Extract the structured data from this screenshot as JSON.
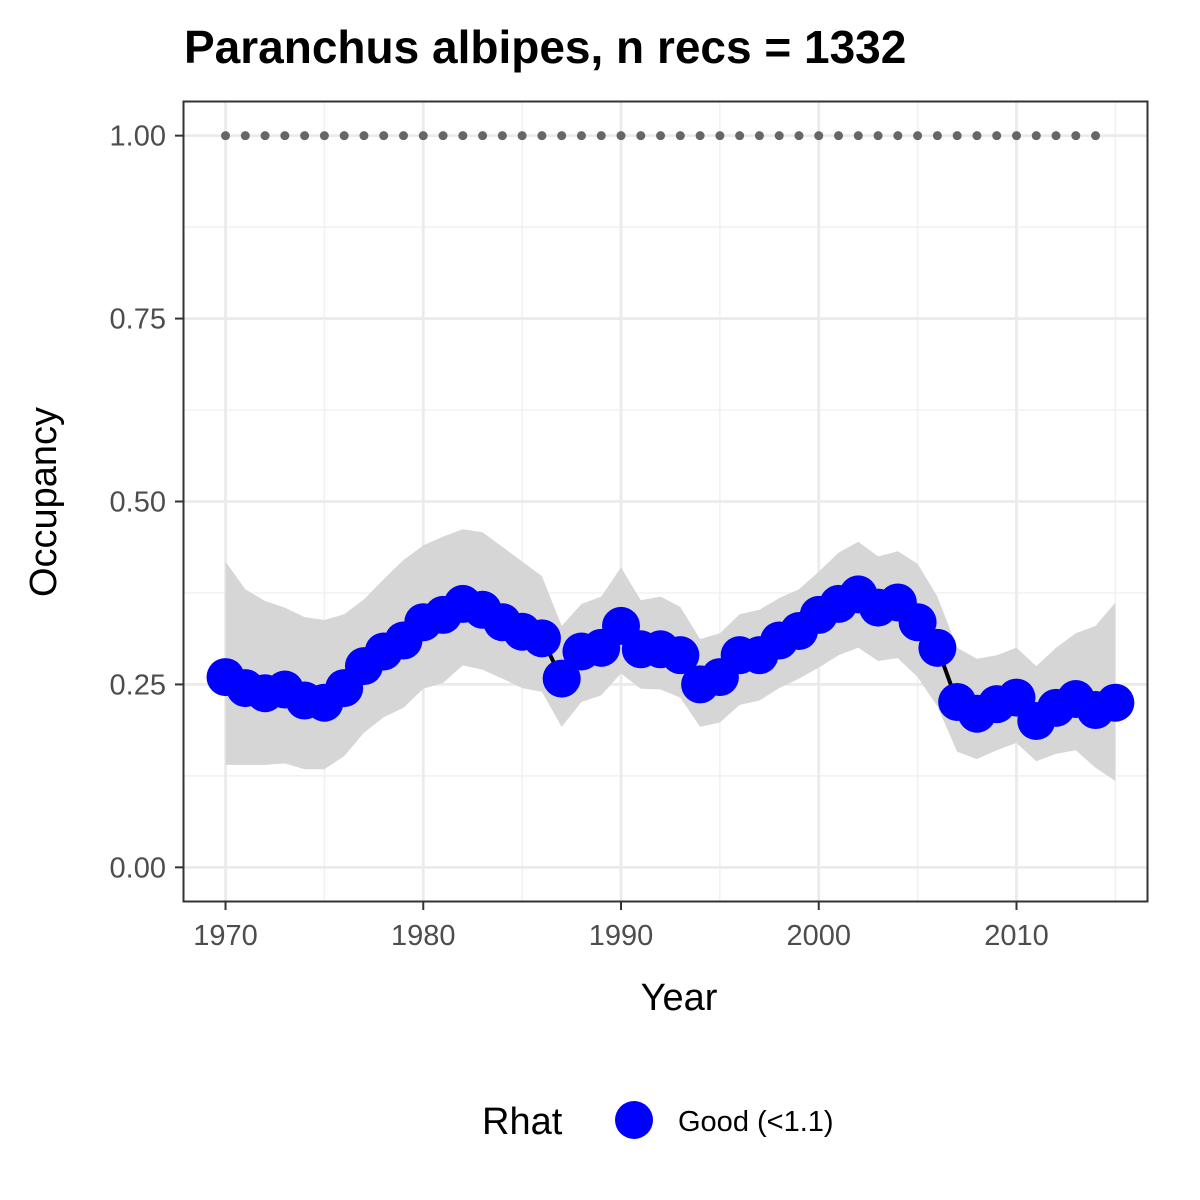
{
  "chart_data": {
    "type": "line",
    "title": "Paranchus albipes, n recs = 1332",
    "xlabel": "Year",
    "ylabel": "Occupancy",
    "xlim": [
      1967.9,
      1916.6
    ],
    "ylim": [
      -0.046,
      1.046
    ],
    "x_ticks": [
      1970,
      1980,
      1990,
      2000,
      2010
    ],
    "x_tick_labels": [
      "1970",
      "1980",
      "1990",
      "2000",
      "2010"
    ],
    "y_ticks": [
      0,
      0.25,
      0.5,
      0.75,
      1.0
    ],
    "y_tick_labels": [
      "0.00",
      "0.25",
      "0.50",
      "0.75",
      "1.00"
    ],
    "grid": true,
    "series": [
      {
        "name": "Occupancy",
        "x": [
          1970,
          1971,
          1972,
          1973,
          1974,
          1975,
          1976,
          1977,
          1978,
          1979,
          1980,
          1981,
          1982,
          1983,
          1984,
          1985,
          1986,
          1987,
          1988,
          1989,
          1990,
          1991,
          1992,
          1993,
          1994,
          1995,
          1996,
          1997,
          1998,
          1999,
          2000,
          2001,
          2002,
          2003,
          2004,
          2005,
          2006,
          2007,
          2008,
          2009,
          2010,
          2011,
          2012,
          2013,
          2014,
          2015
        ],
        "values": [
          0.26,
          0.245,
          0.238,
          0.243,
          0.228,
          0.225,
          0.245,
          0.275,
          0.295,
          0.31,
          0.335,
          0.345,
          0.36,
          0.352,
          0.335,
          0.322,
          0.313,
          0.258,
          0.295,
          0.3,
          0.33,
          0.298,
          0.298,
          0.29,
          0.25,
          0.26,
          0.29,
          0.29,
          0.31,
          0.323,
          0.345,
          0.36,
          0.373,
          0.355,
          0.362,
          0.335,
          0.3,
          0.226,
          0.21,
          0.223,
          0.232,
          0.2,
          0.218,
          0.23,
          0.215,
          0.225
        ],
        "lower": [
          0.14,
          0.14,
          0.14,
          0.142,
          0.134,
          0.134,
          0.152,
          0.184,
          0.205,
          0.218,
          0.244,
          0.252,
          0.276,
          0.27,
          0.258,
          0.245,
          0.24,
          0.192,
          0.226,
          0.235,
          0.265,
          0.244,
          0.243,
          0.232,
          0.192,
          0.198,
          0.222,
          0.228,
          0.245,
          0.258,
          0.273,
          0.29,
          0.3,
          0.282,
          0.286,
          0.26,
          0.22,
          0.158,
          0.148,
          0.16,
          0.17,
          0.145,
          0.155,
          0.16,
          0.136,
          0.118
        ],
        "upper": [
          0.418,
          0.38,
          0.364,
          0.355,
          0.342,
          0.338,
          0.346,
          0.366,
          0.394,
          0.42,
          0.44,
          0.452,
          0.462,
          0.458,
          0.438,
          0.418,
          0.398,
          0.33,
          0.36,
          0.37,
          0.41,
          0.365,
          0.37,
          0.356,
          0.312,
          0.32,
          0.346,
          0.352,
          0.368,
          0.38,
          0.404,
          0.43,
          0.445,
          0.425,
          0.432,
          0.415,
          0.37,
          0.3,
          0.285,
          0.29,
          0.3,
          0.275,
          0.3,
          0.32,
          0.33,
          0.362
        ],
        "color": "#0000ff",
        "line_color": "#000000",
        "ribbon_color": "#d6d6d6"
      },
      {
        "name": "Reference",
        "x": [
          1970,
          1971,
          1972,
          1973,
          1974,
          1975,
          1976,
          1977,
          1978,
          1979,
          1980,
          1981,
          1982,
          1983,
          1984,
          1985,
          1986,
          1987,
          1988,
          1989,
          1990,
          1991,
          1992,
          1993,
          1994,
          1995,
          1996,
          1997,
          1998,
          1999,
          2000,
          2001,
          2002,
          2003,
          2004,
          2005,
          2006,
          2007,
          2008,
          2009,
          2010,
          2011,
          2012,
          2013,
          2014
        ],
        "values": [
          1,
          1,
          1,
          1,
          1,
          1,
          1,
          1,
          1,
          1,
          1,
          1,
          1,
          1,
          1,
          1,
          1,
          1,
          1,
          1,
          1,
          1,
          1,
          1,
          1,
          1,
          1,
          1,
          1,
          1,
          1,
          1,
          1,
          1,
          1,
          1,
          1,
          1,
          1,
          1,
          1,
          1,
          1,
          1,
          1
        ],
        "color": "#666666",
        "style": "dotted"
      }
    ],
    "legend": {
      "title": "Rhat",
      "position": "bottom",
      "entries": [
        {
          "label": "Good (<1.1)",
          "color": "#0000ff"
        }
      ]
    }
  }
}
